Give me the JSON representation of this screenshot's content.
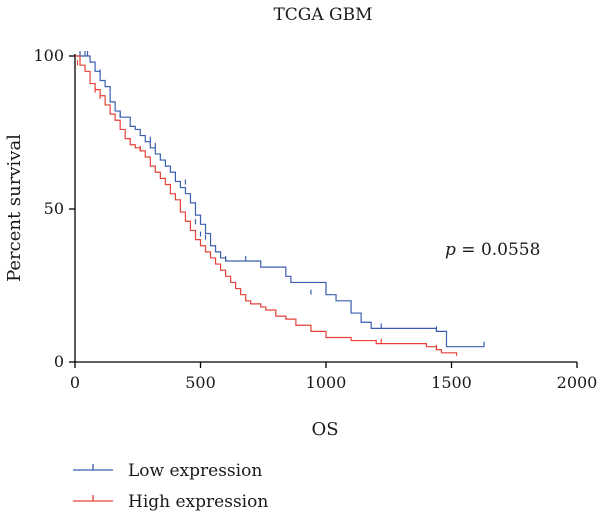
{
  "chart_data": {
    "type": "line",
    "title": "TCGA GBM",
    "xlabel": "OS",
    "ylabel": "Percent survival",
    "xlim": [
      0,
      2000
    ],
    "ylim": [
      0,
      100
    ],
    "x_ticks": [
      0,
      500,
      1000,
      1500,
      2000
    ],
    "y_ticks": [
      0,
      50,
      100
    ],
    "legend_position": "bottom-left",
    "annotation": {
      "p_symbol": "p",
      "p_text": " = 0.0558"
    },
    "series": [
      {
        "name": "Low expression",
        "color": "#3a5fb0",
        "steps": [
          [
            0,
            100
          ],
          [
            60,
            98
          ],
          [
            80,
            95
          ],
          [
            100,
            92
          ],
          [
            120,
            90
          ],
          [
            140,
            85
          ],
          [
            160,
            82
          ],
          [
            180,
            80
          ],
          [
            220,
            77
          ],
          [
            240,
            76
          ],
          [
            260,
            74
          ],
          [
            280,
            72
          ],
          [
            300,
            70
          ],
          [
            320,
            68
          ],
          [
            340,
            66
          ],
          [
            360,
            64
          ],
          [
            380,
            62
          ],
          [
            400,
            59
          ],
          [
            420,
            57
          ],
          [
            440,
            55
          ],
          [
            460,
            52
          ],
          [
            480,
            48
          ],
          [
            500,
            45
          ],
          [
            520,
            42
          ],
          [
            540,
            38
          ],
          [
            560,
            36
          ],
          [
            580,
            34
          ],
          [
            600,
            33
          ],
          [
            740,
            31
          ],
          [
            840,
            28
          ],
          [
            860,
            26
          ],
          [
            1000,
            22
          ],
          [
            1040,
            20
          ],
          [
            1100,
            16
          ],
          [
            1140,
            13
          ],
          [
            1180,
            11
          ],
          [
            1440,
            10
          ],
          [
            1480,
            5
          ],
          [
            1630,
            5
          ]
        ],
        "censors": [
          [
            20,
            100
          ],
          [
            40,
            100
          ],
          [
            50,
            100
          ],
          [
            100,
            94
          ],
          [
            180,
            80
          ],
          [
            300,
            72
          ],
          [
            320,
            70
          ],
          [
            440,
            58
          ],
          [
            480,
            45
          ],
          [
            500,
            41
          ],
          [
            520,
            40
          ],
          [
            600,
            33
          ],
          [
            680,
            33
          ],
          [
            940,
            22
          ],
          [
            1220,
            11
          ],
          [
            1440,
            10
          ],
          [
            1630,
            5
          ]
        ]
      },
      {
        "name": "High expression",
        "color": "#e8403a",
        "steps": [
          [
            0,
            100
          ],
          [
            20,
            97
          ],
          [
            40,
            95
          ],
          [
            60,
            91
          ],
          [
            80,
            89
          ],
          [
            100,
            87
          ],
          [
            120,
            84
          ],
          [
            140,
            81
          ],
          [
            160,
            79
          ],
          [
            180,
            76
          ],
          [
            200,
            73
          ],
          [
            220,
            71
          ],
          [
            240,
            70
          ],
          [
            260,
            69
          ],
          [
            280,
            67
          ],
          [
            300,
            64
          ],
          [
            320,
            62
          ],
          [
            340,
            60
          ],
          [
            360,
            58
          ],
          [
            380,
            55
          ],
          [
            400,
            53
          ],
          [
            420,
            49
          ],
          [
            440,
            46
          ],
          [
            460,
            43
          ],
          [
            480,
            40
          ],
          [
            500,
            38
          ],
          [
            520,
            36
          ],
          [
            540,
            34
          ],
          [
            560,
            32
          ],
          [
            580,
            30
          ],
          [
            600,
            28
          ],
          [
            620,
            26
          ],
          [
            640,
            24
          ],
          [
            660,
            22
          ],
          [
            680,
            20
          ],
          [
            700,
            19
          ],
          [
            740,
            18
          ],
          [
            760,
            17
          ],
          [
            800,
            15
          ],
          [
            840,
            14
          ],
          [
            880,
            12
          ],
          [
            940,
            10
          ],
          [
            1000,
            8
          ],
          [
            1100,
            7
          ],
          [
            1200,
            6
          ],
          [
            1400,
            5
          ],
          [
            1440,
            4
          ],
          [
            1460,
            3
          ],
          [
            1520,
            2
          ]
        ],
        "censors": [
          [
            10,
            97
          ],
          [
            80,
            88
          ],
          [
            100,
            86
          ],
          [
            260,
            69
          ],
          [
            1220,
            6
          ],
          [
            1440,
            4
          ]
        ]
      }
    ]
  }
}
